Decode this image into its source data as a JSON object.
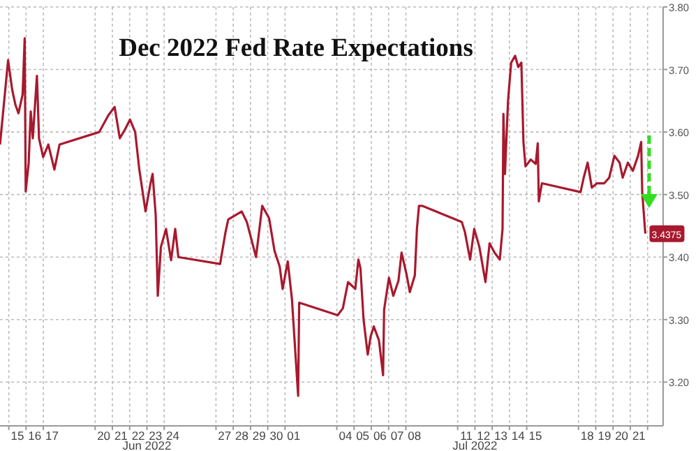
{
  "chart_data": {
    "type": "line",
    "title": "Dec 2022 Fed Rate Expectations",
    "x": [
      "2022-06-14T11:46",
      "2022-06-14T23:02",
      "2022-06-15T04:48",
      "2022-06-15T09:07",
      "2022-06-15T13:26",
      "2022-06-15T19:12",
      "2022-06-15T22:05",
      "2022-06-15T23:31",
      "2022-06-16T03:36",
      "2022-06-16T06:29",
      "2022-06-16T09:22",
      "2022-06-16T15:07",
      "2022-06-16T18:00",
      "2022-06-16T23:46",
      "2022-06-17T06:58",
      "2022-06-17T15:22",
      "2022-06-17T22:34",
      "2022-06-20T05:46",
      "2022-06-20T18:29",
      "2022-06-21T03:07",
      "2022-06-21T10:19",
      "2022-06-21T17:31",
      "2022-06-22T00:29",
      "2022-06-22T07:41",
      "2022-06-22T13:26",
      "2022-06-22T22:05",
      "2022-06-23T05:02",
      "2022-06-23T07:55",
      "2022-06-23T12:14",
      "2022-06-23T15:07",
      "2022-06-23T19:26",
      "2022-06-24T02:38",
      "2022-06-24T09:36",
      "2022-06-24T15:22",
      "2022-06-24T19:41",
      "2022-06-27T05:46",
      "2022-06-27T12:58",
      "2022-06-27T17:02",
      "2022-06-28T11:46",
      "2022-06-28T18:58",
      "2022-06-29T07:41",
      "2022-06-29T16:19",
      "2022-06-30T01:55",
      "2022-06-30T09:22",
      "2022-06-30T16:34",
      "2022-06-30T20:38",
      "2022-07-01T03:50",
      "2022-07-01T09:36",
      "2022-07-01T11:02",
      "2022-07-01T18:14",
      "2022-07-01T19:41",
      "2022-07-04T01:12",
      "2022-07-04T08:24",
      "2022-07-04T15:36",
      "2022-07-05T01:41",
      "2022-07-05T06:00",
      "2022-07-05T08:53",
      "2022-07-05T13:12",
      "2022-07-05T18:58",
      "2022-07-05T23:02",
      "2022-07-06T03:22",
      "2022-07-06T10:34",
      "2022-07-06T16:19",
      "2022-07-06T17:46",
      "2022-07-07T00:29",
      "2022-07-07T06:29",
      "2022-07-07T13:41",
      "2022-07-07T18:00",
      "2022-07-08T01:12",
      "2022-07-08T05:31",
      "2022-07-08T12:29",
      "2022-07-08T15:22",
      "2022-07-08T18:14",
      "2022-07-08T22:34",
      "2022-07-11T05:46",
      "2022-07-11T10:05",
      "2022-07-11T17:17",
      "2022-07-11T23:02",
      "2022-07-12T06:14",
      "2022-07-12T14:38",
      "2022-07-12T20:24",
      "2022-07-13T03:22",
      "2022-07-13T10:34",
      "2022-07-13T14:24",
      "2022-07-13T15:36",
      "2022-07-13T17:46",
      "2022-07-13T22:05",
      "2022-07-14T02:24",
      "2022-07-14T07:55",
      "2022-07-14T12:14",
      "2022-07-14T16:34",
      "2022-07-14T19:26",
      "2022-07-14T22:19",
      "2022-07-15T05:31",
      "2022-07-15T12:29",
      "2022-07-15T15:22",
      "2022-07-15T16:48",
      "2022-07-15T21:07",
      "2022-07-18T02:53",
      "2022-07-18T07:12",
      "2022-07-18T12:43",
      "2022-07-18T18:29",
      "2022-07-19T01:41",
      "2022-07-19T11:46",
      "2022-07-19T18:43",
      "2022-07-20T01:55",
      "2022-07-20T09:07",
      "2022-07-20T13:26",
      "2022-07-20T20:38",
      "2022-07-21T03:36",
      "2022-07-21T10:48",
      "2022-07-21T15:07",
      "2022-07-21T16:34",
      "2022-07-21T20:53"
    ],
    "series": [
      {
        "color": "#a8192e",
        "values": [
          3.58,
          3.715,
          3.667,
          3.644,
          3.63,
          3.66,
          3.75,
          3.505,
          3.55,
          3.633,
          3.59,
          3.69,
          3.59,
          3.56,
          3.58,
          3.54,
          3.58,
          3.6,
          3.627,
          3.64,
          3.59,
          3.604,
          3.62,
          3.6,
          3.54,
          3.473,
          3.518,
          3.533,
          3.467,
          3.338,
          3.416,
          3.445,
          3.395,
          3.445,
          3.4,
          3.389,
          3.438,
          3.46,
          3.473,
          3.456,
          3.4,
          3.482,
          3.462,
          3.41,
          3.385,
          3.349,
          3.393,
          3.333,
          3.307,
          3.178,
          3.327,
          3.307,
          3.318,
          3.36,
          3.349,
          3.396,
          3.382,
          3.3,
          3.244,
          3.273,
          3.289,
          3.267,
          3.211,
          3.316,
          3.367,
          3.338,
          3.362,
          3.407,
          3.371,
          3.344,
          3.371,
          3.445,
          3.482,
          3.482,
          3.456,
          3.44,
          3.396,
          3.445,
          3.416,
          3.36,
          3.422,
          3.407,
          3.396,
          3.445,
          3.629,
          3.533,
          3.651,
          3.711,
          3.722,
          3.704,
          3.711,
          3.584,
          3.545,
          3.556,
          3.549,
          3.582,
          3.489,
          3.518,
          3.504,
          3.527,
          3.551,
          3.511,
          3.518,
          3.518,
          3.527,
          3.562,
          3.551,
          3.527,
          3.551,
          3.538,
          3.562,
          3.584,
          3.504,
          3.4375
        ],
        "value_labels": [
          null,
          null,
          null,
          null,
          null,
          null,
          null,
          null,
          null,
          null,
          null,
          null,
          null,
          null,
          null,
          null,
          null,
          null,
          null,
          null,
          null,
          null,
          null,
          null,
          null,
          null,
          null,
          null,
          null,
          null,
          null,
          null,
          null,
          null,
          null,
          null,
          null,
          null,
          null,
          null,
          null,
          null,
          null,
          null,
          null,
          null,
          null,
          null,
          null,
          null,
          null,
          null,
          null,
          null,
          null,
          null,
          null,
          null,
          null,
          null,
          null,
          null,
          null,
          null,
          null,
          null,
          null,
          null,
          null,
          null,
          null,
          null,
          null,
          null,
          null,
          null,
          null,
          null,
          null,
          null,
          null,
          null,
          null,
          null,
          null,
          null,
          null,
          null,
          null,
          null,
          null,
          null,
          null,
          null,
          null,
          null,
          null,
          null,
          null,
          null,
          null,
          null,
          null,
          null,
          null,
          null,
          null,
          null,
          null,
          null,
          null,
          null,
          null,
          "3.4375"
        ]
      }
    ],
    "xlim": [
      "2022-06-14T11:46",
      "2022-07-22T21:36"
    ],
    "xticks": [
      {
        "value": "2022-06-15",
        "label": null
      },
      {
        "value": "2022-06-15T12:00",
        "label": "15"
      },
      {
        "value": "2022-06-16",
        "label": null
      },
      {
        "value": "2022-06-16T12:00",
        "label": "16"
      },
      {
        "value": "2022-06-17",
        "label": null
      },
      {
        "value": "2022-06-17T12:00",
        "label": "17"
      },
      {
        "value": "2022-06-20",
        "label": null
      },
      {
        "value": "2022-06-20T12:00",
        "label": "20"
      },
      {
        "value": "2022-06-21",
        "label": null
      },
      {
        "value": "2022-06-21T12:00",
        "label": "21"
      },
      {
        "value": "2022-06-22",
        "label": null
      },
      {
        "value": "2022-06-22T12:00",
        "label": "22"
      },
      {
        "value": "2022-06-23",
        "label": null
      },
      {
        "value": "2022-06-23T12:00",
        "label": "23"
      },
      {
        "value": "2022-06-24",
        "label": null
      },
      {
        "value": "2022-06-24T12:00",
        "label": "24"
      },
      {
        "value": "2022-06-27",
        "label": null
      },
      {
        "value": "2022-06-27T12:00",
        "label": "27"
      },
      {
        "value": "2022-06-28",
        "label": null
      },
      {
        "value": "2022-06-28T12:00",
        "label": "28"
      },
      {
        "value": "2022-06-29",
        "label": null
      },
      {
        "value": "2022-06-29T12:00",
        "label": "29"
      },
      {
        "value": "2022-06-30",
        "label": null
      },
      {
        "value": "2022-06-30T12:00",
        "label": "30"
      },
      {
        "value": "2022-07-01",
        "label": null
      },
      {
        "value": "2022-07-01T12:00",
        "label": "01"
      },
      {
        "value": "2022-07-04",
        "label": null
      },
      {
        "value": "2022-07-04T12:00",
        "label": "04"
      },
      {
        "value": "2022-07-05",
        "label": null
      },
      {
        "value": "2022-07-05T12:00",
        "label": "05"
      },
      {
        "value": "2022-07-06",
        "label": null
      },
      {
        "value": "2022-07-06T12:00",
        "label": "06"
      },
      {
        "value": "2022-07-07",
        "label": null
      },
      {
        "value": "2022-07-07T12:00",
        "label": "07"
      },
      {
        "value": "2022-07-08",
        "label": null
      },
      {
        "value": "2022-07-08T12:00",
        "label": "08"
      },
      {
        "value": "2022-07-11",
        "label": null
      },
      {
        "value": "2022-07-11T12:00",
        "label": "11"
      },
      {
        "value": "2022-07-12",
        "label": null
      },
      {
        "value": "2022-07-12T12:00",
        "label": "12"
      },
      {
        "value": "2022-07-13",
        "label": null
      },
      {
        "value": "2022-07-13T12:00",
        "label": "13"
      },
      {
        "value": "2022-07-14",
        "label": null
      },
      {
        "value": "2022-07-14T12:00",
        "label": "14"
      },
      {
        "value": "2022-07-15",
        "label": null
      },
      {
        "value": "2022-07-15T12:00",
        "label": "15"
      },
      {
        "value": "2022-07-18",
        "label": null
      },
      {
        "value": "2022-07-18T12:00",
        "label": "18"
      },
      {
        "value": "2022-07-19",
        "label": null
      },
      {
        "value": "2022-07-19T12:00",
        "label": "19"
      },
      {
        "value": "2022-07-20",
        "label": null
      },
      {
        "value": "2022-07-20T12:00",
        "label": "20"
      },
      {
        "value": "2022-07-21",
        "label": null
      },
      {
        "value": "2022-07-21T12:00",
        "label": "21"
      },
      {
        "value": "2022-07-22",
        "label": null
      }
    ],
    "ylim": [
      3.13,
      3.8
    ],
    "yticks": [
      {
        "value": 3.2,
        "label": "3.20"
      },
      {
        "value": 3.3,
        "label": "3.30"
      },
      {
        "value": 3.4,
        "label": "3.40"
      },
      {
        "value": 3.5,
        "label": "3.50"
      },
      {
        "value": 3.6,
        "label": "3.60"
      },
      {
        "value": 3.7,
        "label": "3.70"
      },
      {
        "value": 3.8,
        "label": "3.80"
      }
    ],
    "grid": true,
    "marker": "none",
    "line_style": "solid",
    "annotations": [
      "Jun 2022",
      "Jul 2022"
    ]
  }
}
